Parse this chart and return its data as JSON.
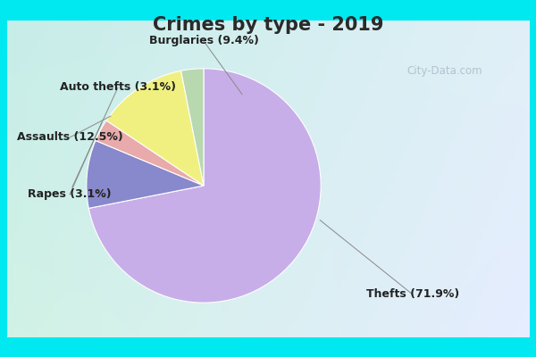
{
  "title": "Crimes by type - 2019",
  "labels": [
    "Thefts",
    "Burglaries",
    "Auto thefts",
    "Assaults",
    "Rapes"
  ],
  "values": [
    71.9,
    9.4,
    3.1,
    12.5,
    3.1
  ],
  "colors": [
    "#c8aee8",
    "#8888cc",
    "#e8aaaa",
    "#f0f080",
    "#b8d8b0"
  ],
  "bg_cyan": "#00e8f0",
  "bg_inner_top_left": "#c8ece8",
  "bg_inner_bottom_right": "#e8eeff",
  "title_fontsize": 15,
  "label_fontsize": 9,
  "watermark": "City-Data.com",
  "start_angle": 90
}
